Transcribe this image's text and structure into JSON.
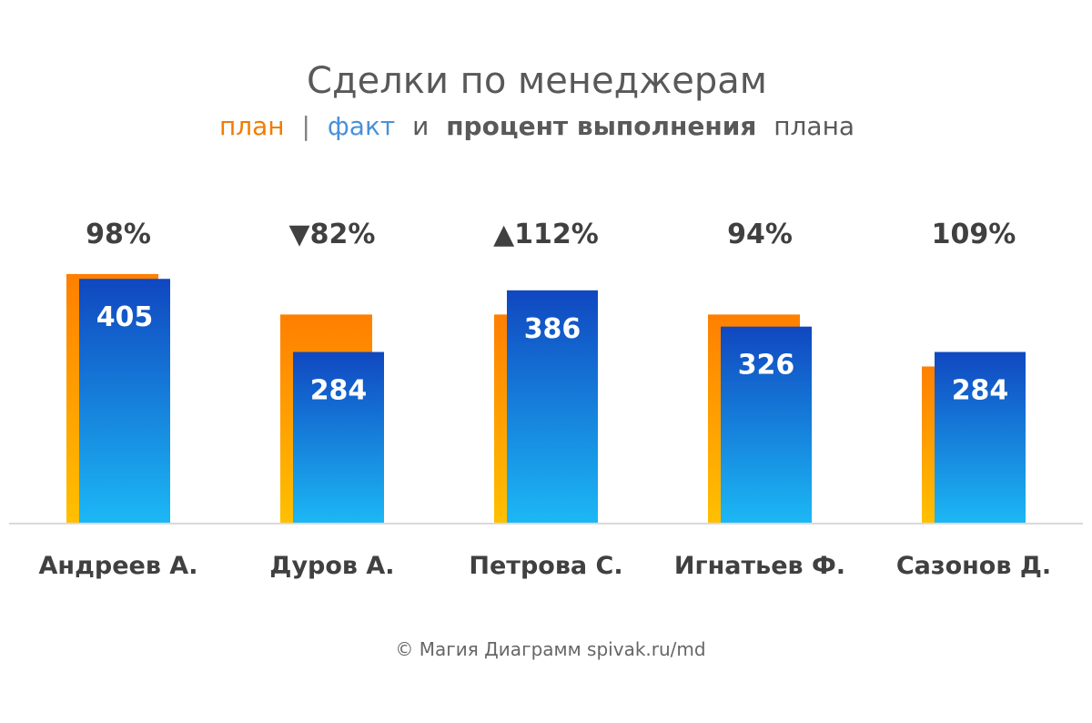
{
  "title": "Сделки по менеджерам",
  "subtitle": {
    "plan": "план",
    "separator": "|",
    "fact": "факт",
    "and": "и",
    "percent": "процент выполнения",
    "tail": "плана"
  },
  "credit": "© Магия Диаграмм spivak.ru/md",
  "colors": {
    "plan_top": "#FF7F00",
    "plan_bottom": "#FFC000",
    "fact_top": "#1047C0",
    "fact_bottom": "#1CB8F5",
    "axis": "#D9D9D9"
  },
  "chart_data": {
    "type": "bar",
    "categories": [
      "Андреев А.",
      "Дуров А.",
      "Петрова С.",
      "Игнатьев Ф.",
      "Сазонов Д."
    ],
    "series": [
      {
        "name": "план",
        "values": [
          413,
          346,
          346,
          346,
          260
        ]
      },
      {
        "name": "факт",
        "values": [
          405,
          284,
          386,
          326,
          284
        ]
      }
    ],
    "percent_labels": [
      "98%",
      "▼82%",
      "▲112%",
      "94%",
      "109%"
    ],
    "ylim": [
      0,
      460
    ]
  }
}
